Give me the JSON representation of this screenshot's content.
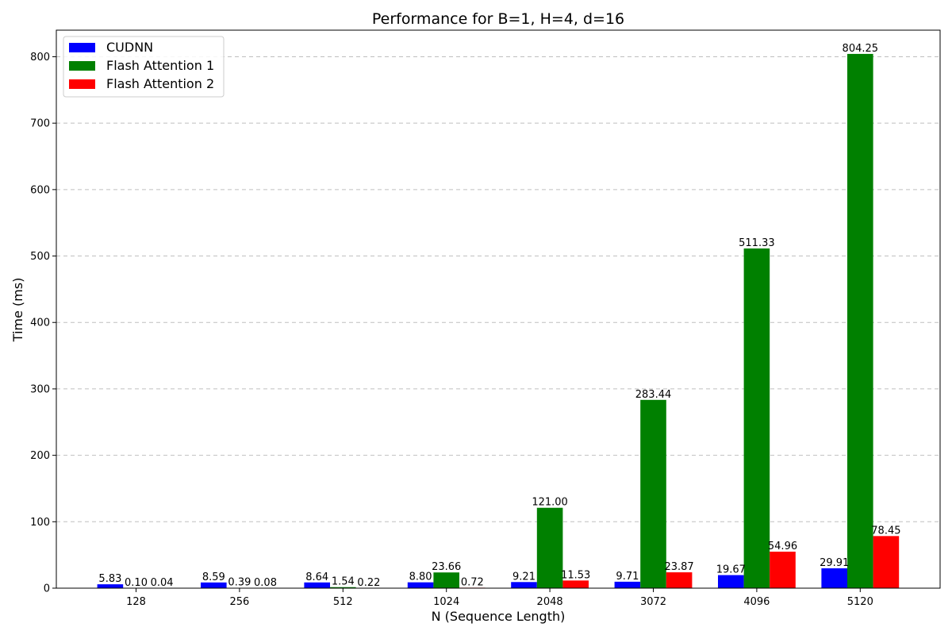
{
  "chart_data": {
    "type": "bar",
    "title": "Performance for B=1, H=4, d=16",
    "xlabel": "N (Sequence Length)",
    "ylabel": "Time (ms)",
    "categories": [
      "128",
      "256",
      "512",
      "1024",
      "2048",
      "3072",
      "4096",
      "5120"
    ],
    "ylim": [
      0,
      840
    ],
    "yticks": [
      0,
      100,
      200,
      300,
      400,
      500,
      600,
      700,
      800
    ],
    "grid": "y-dashed",
    "legend_position": "top-left",
    "series": [
      {
        "name": "CUDNN",
        "color": "#0000ff",
        "values": [
          5.83,
          8.59,
          8.64,
          8.8,
          9.21,
          9.71,
          19.67,
          29.91
        ],
        "labels": [
          "5.83",
          "8.59",
          "8.64",
          "8.80",
          "9.21",
          "9.71",
          "19.67",
          "29.91"
        ]
      },
      {
        "name": "Flash Attention 1",
        "color": "#008000",
        "values": [
          0.1,
          0.39,
          1.54,
          23.66,
          121.0,
          283.44,
          511.33,
          804.25
        ],
        "labels": [
          "0.10",
          "0.39",
          "1.54",
          "23.66",
          "121.00",
          "283.44",
          "511.33",
          "804.25"
        ]
      },
      {
        "name": "Flash Attention 2",
        "color": "#ff0000",
        "values": [
          0.04,
          0.08,
          0.22,
          0.72,
          11.53,
          23.87,
          54.96,
          78.45
        ],
        "labels": [
          "0.04",
          "0.08",
          "0.22",
          "0.72",
          "11.53",
          "23.87",
          "54.96",
          "78.45"
        ]
      }
    ]
  }
}
